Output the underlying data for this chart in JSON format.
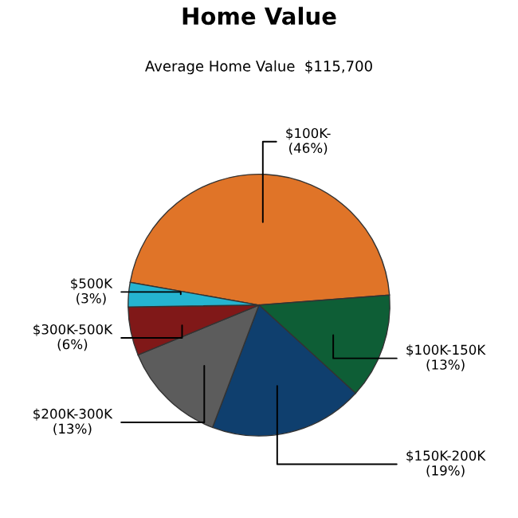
{
  "chart_data": {
    "type": "pie",
    "title": "Home Value",
    "subtitle": "Average Home Value  $115,700",
    "categories": [
      "$100K-",
      "$100K-150K",
      "$150K-200K",
      "$200K-300K",
      "$300K-500K",
      "$500K"
    ],
    "values": [
      46,
      13,
      19,
      13,
      6,
      3
    ],
    "value_labels": [
      "(46%)",
      "(13%)",
      "(19%)",
      "(13%)",
      "(6%)",
      "(3%)"
    ],
    "colors": [
      "#e07428",
      "#0e5e36",
      "#0f3f6e",
      "#5c5c5c",
      "#801818",
      "#25b4d0"
    ]
  }
}
